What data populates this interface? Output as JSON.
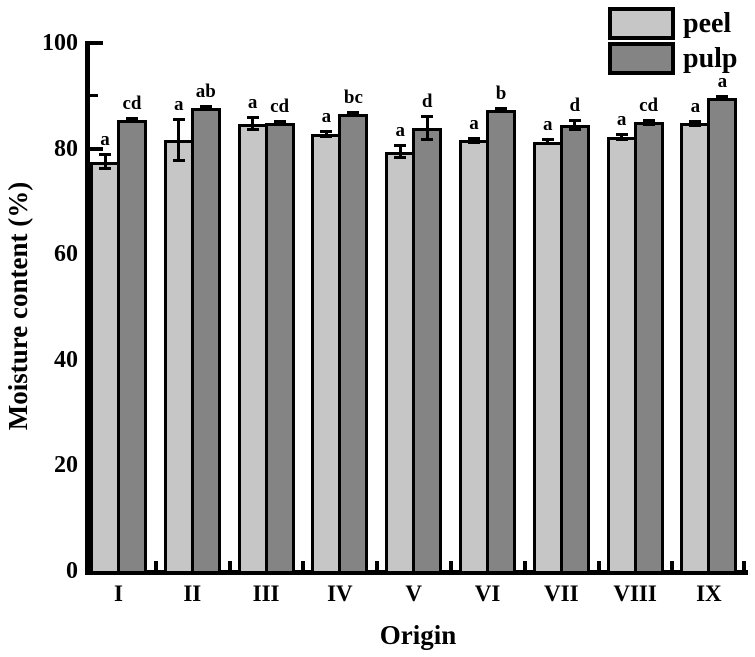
{
  "chart_data": {
    "type": "bar",
    "title": "",
    "xlabel": "Origin",
    "ylabel": "Moisture content (%)",
    "ylim": [
      0,
      100
    ],
    "yticks_major": [
      0,
      20,
      40,
      60,
      80,
      100
    ],
    "yticks_minor": [
      10,
      30,
      50,
      70,
      90
    ],
    "categories": [
      "I",
      "II",
      "III",
      "IV",
      "V",
      "VI",
      "VII",
      "VIII",
      "IX"
    ],
    "legend_position": "top-right",
    "grid": "off",
    "series": [
      {
        "name": "peel",
        "color": "#c6c6c6",
        "values": [
          77.5,
          81.6,
          84.7,
          82.8,
          79.4,
          81.6,
          81.3,
          82.2,
          84.8
        ],
        "errors": [
          1.4,
          4.0,
          1.2,
          0.6,
          1.2,
          0.5,
          0.5,
          0.6,
          0.5
        ],
        "sig_letters": [
          "a",
          "a",
          "a",
          "a",
          "a",
          "a",
          "a",
          "a",
          "a"
        ]
      },
      {
        "name": "pulp",
        "color": "#848484",
        "values": [
          85.4,
          87.7,
          84.9,
          86.6,
          83.9,
          87.3,
          84.5,
          85.0,
          89.6
        ],
        "errors": [
          0.4,
          0.4,
          0.4,
          0.4,
          2.2,
          0.4,
          1.0,
          0.5,
          0.4
        ],
        "sig_letters": [
          "cd",
          "ab",
          "cd",
          "bc",
          "d",
          "b",
          "d",
          "cd",
          "a"
        ]
      }
    ],
    "bar_outline_color": "#000000",
    "axis_color": "#000000",
    "background_color": "#ffffff"
  }
}
